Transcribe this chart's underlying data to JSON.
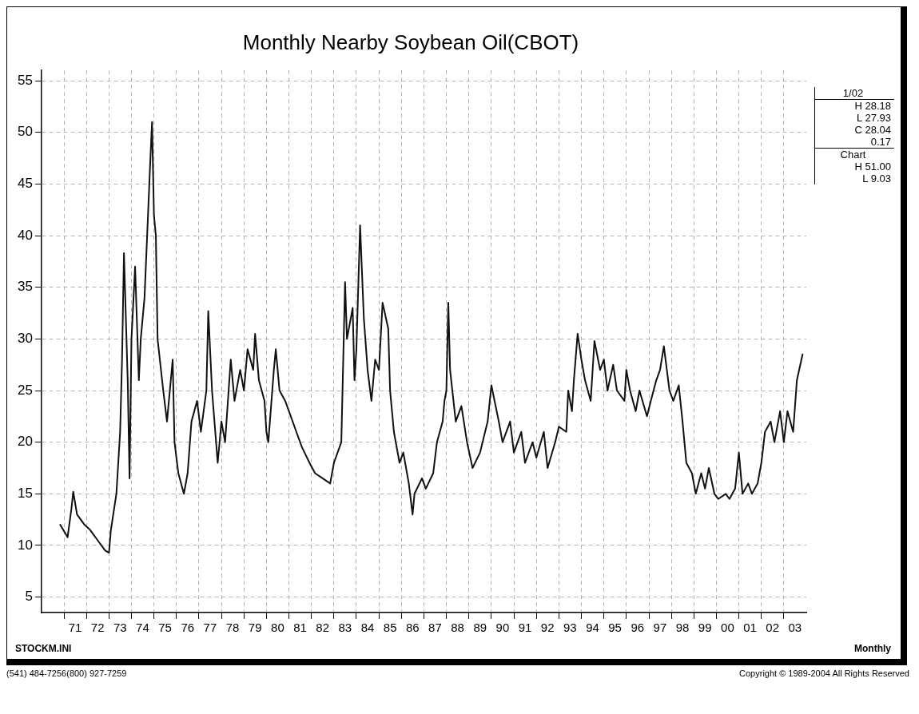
{
  "chart_data": {
    "type": "line",
    "title": "Monthly Nearby Soybean Oil(CBOT)",
    "x": [
      "1970-11",
      "1971-03",
      "1971-05",
      "1971-06",
      "1971-08",
      "1971-12",
      "1972-03",
      "1972-07",
      "1972-11",
      "1973-01",
      "1973-02",
      "1973-05",
      "1973-07",
      "1973-08",
      "1973-09",
      "1973-11",
      "1973-12",
      "1974-01",
      "1974-03",
      "1974-05",
      "1974-06",
      "1974-08",
      "1974-11",
      "1974-12",
      "1975-01",
      "1975-02",
      "1975-03",
      "1975-06",
      "1975-08",
      "1975-11",
      "1975-12",
      "1976-02",
      "1976-05",
      "1976-07",
      "1976-09",
      "1976-12",
      "1977-02",
      "1977-05",
      "1977-06",
      "1977-08",
      "1977-11",
      "1978-01",
      "1978-03",
      "1978-06",
      "1978-08",
      "1978-11",
      "1979-01",
      "1979-03",
      "1979-06",
      "1979-07",
      "1979-09",
      "1979-12",
      "1980-01",
      "1980-02",
      "1980-05",
      "1980-06",
      "1980-08",
      "1980-11",
      "1981-01",
      "1981-05",
      "1981-08",
      "1981-12",
      "1982-03",
      "1982-07",
      "1982-11",
      "1983-01",
      "1983-05",
      "1983-07",
      "1983-08",
      "1983-11",
      "1983-12",
      "1984-01",
      "1984-03",
      "1984-05",
      "1984-07",
      "1984-09",
      "1984-11",
      "1985-01",
      "1985-03",
      "1985-06",
      "1985-07",
      "1985-09",
      "1985-12",
      "1986-02",
      "1986-05",
      "1986-07",
      "1986-08",
      "1986-12",
      "1987-02",
      "1987-06",
      "1987-08",
      "1987-11",
      "1987-12",
      "1988-01",
      "1988-02",
      "1988-03",
      "1988-06",
      "1988-09",
      "1988-12",
      "1989-03",
      "1989-07",
      "1989-11",
      "1990-01",
      "1990-05",
      "1990-07",
      "1990-11",
      "1991-01",
      "1991-05",
      "1991-07",
      "1991-11",
      "1992-01",
      "1992-05",
      "1992-07",
      "1992-11",
      "1993-01",
      "1993-05",
      "1993-06",
      "1993-08",
      "1993-09",
      "1993-11",
      "1994-01",
      "1994-03",
      "1994-06",
      "1994-08",
      "1994-11",
      "1995-01",
      "1995-03",
      "1995-06",
      "1995-08",
      "1995-12",
      "1996-01",
      "1996-03",
      "1996-06",
      "1996-08",
      "1996-12",
      "1997-02",
      "1997-05",
      "1997-07",
      "1997-09",
      "1997-12",
      "1998-02",
      "1998-05",
      "1998-07",
      "1998-09",
      "1998-12",
      "1999-02",
      "1999-05",
      "1999-07",
      "1999-09",
      "1999-12",
      "2000-02",
      "2000-06",
      "2000-08",
      "2000-11",
      "2001-01",
      "2001-03",
      "2001-06",
      "2001-08",
      "2001-11",
      "2002-01",
      "2002-03",
      "2002-06",
      "2002-08",
      "2002-11",
      "2003-01",
      "2003-03",
      "2003-06",
      "2003-08",
      "2003-11"
    ],
    "series": [
      {
        "color": "#111111",
        "values": [
          12.0,
          10.8,
          13.5,
          15.2,
          13,
          12.0,
          11.5,
          10.5,
          9.5,
          9.3,
          11.5,
          15,
          21,
          28,
          38.3,
          26,
          16.5,
          30,
          37,
          26,
          30,
          34,
          47,
          51.0,
          42,
          40,
          30,
          25,
          22,
          28,
          20,
          17,
          15,
          17,
          22,
          24,
          21,
          25,
          32.7,
          25,
          18,
          22,
          20,
          28,
          24,
          27,
          25,
          29,
          27,
          30.5,
          26,
          24,
          21,
          20,
          27,
          29,
          25,
          24,
          23,
          21,
          19.5,
          18,
          17,
          16.5,
          16,
          18,
          20,
          35.5,
          30,
          33,
          26,
          29,
          41,
          32,
          27,
          24,
          28,
          27,
          33.5,
          31,
          25,
          21,
          18,
          19,
          16,
          13,
          15,
          16.5,
          15.5,
          17,
          20,
          22,
          24,
          25,
          33.5,
          27,
          22,
          23.5,
          20,
          17.5,
          19,
          22,
          25.5,
          22,
          20,
          22,
          19,
          21,
          18,
          20,
          18.5,
          21,
          17.5,
          20,
          21.5,
          21,
          25,
          23,
          26,
          30.5,
          28,
          26,
          24,
          29.8,
          27,
          28,
          25,
          27.5,
          25,
          24,
          27,
          25,
          23,
          25,
          22.5,
          24,
          26,
          27,
          29.3,
          25,
          24,
          25.5,
          22,
          18,
          17,
          15,
          17,
          15.5,
          17.5,
          15,
          14.5,
          15,
          14.5,
          15.5,
          19,
          15,
          16,
          15,
          16,
          18,
          21,
          22,
          20,
          23,
          20,
          23,
          21,
          26,
          28.5
        ]
      }
    ],
    "xlim": [
      "1970-01",
      "2004-01"
    ],
    "xticks": [
      {
        "value": "1971-01",
        "label": null
      },
      {
        "value": "1972-01",
        "label": null
      },
      {
        "value": "1973-01",
        "label": null
      },
      {
        "value": "1974-01",
        "label": null
      },
      {
        "value": "1975-01",
        "label": null
      },
      {
        "value": "1976-01",
        "label": null
      },
      {
        "value": "1977-01",
        "label": null
      },
      {
        "value": "1978-01",
        "label": null
      },
      {
        "value": "1979-01",
        "label": null
      },
      {
        "value": "1980-01",
        "label": null
      },
      {
        "value": "1981-01",
        "label": null
      },
      {
        "value": "1982-01",
        "label": null
      },
      {
        "value": "1983-01",
        "label": null
      },
      {
        "value": "1984-01",
        "label": null
      },
      {
        "value": "1985-01",
        "label": null
      },
      {
        "value": "1986-01",
        "label": null
      },
      {
        "value": "1987-01",
        "label": null
      },
      {
        "value": "1988-01",
        "label": null
      },
      {
        "value": "1989-01",
        "label": null
      },
      {
        "value": "1990-01",
        "label": null
      },
      {
        "value": "1991-01",
        "label": null
      },
      {
        "value": "1992-01",
        "label": null
      },
      {
        "value": "1993-01",
        "label": null
      },
      {
        "value": "1994-01",
        "label": null
      },
      {
        "value": "1995-01",
        "label": null
      },
      {
        "value": "1996-01",
        "label": null
      },
      {
        "value": "1997-01",
        "label": null
      },
      {
        "value": "1998-01",
        "label": null
      },
      {
        "value": "1999-01",
        "label": null
      },
      {
        "value": "2000-01",
        "label": null
      },
      {
        "value": "2001-01",
        "label": null
      },
      {
        "value": "2002-01",
        "label": null
      },
      {
        "value": "2003-01",
        "label": null
      },
      {
        "value": "1971-07",
        "label": "71"
      },
      {
        "value": "1972-07",
        "label": "72"
      },
      {
        "value": "1973-07",
        "label": "73"
      },
      {
        "value": "1974-07",
        "label": "74"
      },
      {
        "value": "1975-07",
        "label": "75"
      },
      {
        "value": "1976-07",
        "label": "76"
      },
      {
        "value": "1977-07",
        "label": "77"
      },
      {
        "value": "1978-07",
        "label": "78"
      },
      {
        "value": "1979-07",
        "label": "79"
      },
      {
        "value": "1980-07",
        "label": "80"
      },
      {
        "value": "1981-07",
        "label": "81"
      },
      {
        "value": "1982-07",
        "label": "82"
      },
      {
        "value": "1983-07",
        "label": "83"
      },
      {
        "value": "1984-07",
        "label": "84"
      },
      {
        "value": "1985-07",
        "label": "85"
      },
      {
        "value": "1986-07",
        "label": "86"
      },
      {
        "value": "1987-07",
        "label": "87"
      },
      {
        "value": "1988-07",
        "label": "88"
      },
      {
        "value": "1989-07",
        "label": "89"
      },
      {
        "value": "1990-07",
        "label": "90"
      },
      {
        "value": "1991-07",
        "label": "91"
      },
      {
        "value": "1992-07",
        "label": "92"
      },
      {
        "value": "1993-07",
        "label": "93"
      },
      {
        "value": "1994-07",
        "label": "94"
      },
      {
        "value": "1995-07",
        "label": "95"
      },
      {
        "value": "1996-07",
        "label": "96"
      },
      {
        "value": "1997-07",
        "label": "97"
      },
      {
        "value": "1998-07",
        "label": "98"
      },
      {
        "value": "1999-07",
        "label": "99"
      },
      {
        "value": "2000-07",
        "label": "00"
      },
      {
        "value": "2001-07",
        "label": "01"
      },
      {
        "value": "2002-07",
        "label": "02"
      },
      {
        "value": "2003-07",
        "label": "03"
      }
    ],
    "ylim": [
      3.5,
      56
    ],
    "yticks": [
      5,
      10,
      15,
      20,
      25,
      30,
      35,
      40,
      45,
      50,
      55
    ],
    "grid": true,
    "marker": "none",
    "line_style": "solid",
    "annotations": [
      "1/02",
      "H 28.18",
      "L 27.93",
      "C 28.04",
      "0.17",
      "Chart",
      "H 51.00",
      "L 9.03",
      "STOCKM.INI",
      "Monthly",
      "(541) 484-7256(800) 927-7259",
      "Copyright © 1989-2004 All Rights Reserved"
    ]
  }
}
